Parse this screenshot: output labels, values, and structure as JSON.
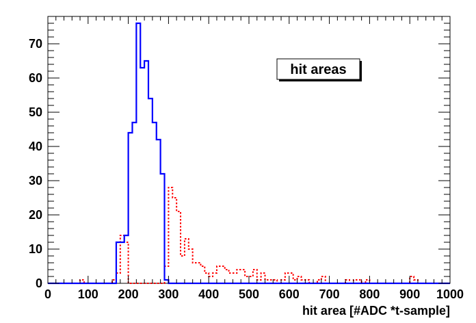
{
  "chart_data": {
    "type": "step",
    "title": "hit areas",
    "xlabel": "hit area [#ADC *t-sample]",
    "ylabel": "",
    "xlim": [
      0,
      1000
    ],
    "ylim": [
      0,
      78
    ],
    "bin_width": 10,
    "x_ticks": [
      0,
      100,
      200,
      300,
      400,
      500,
      600,
      700,
      800,
      900,
      1000
    ],
    "y_ticks": [
      0,
      10,
      20,
      30,
      40,
      50,
      60,
      70
    ],
    "series": [
      {
        "color": "#0000ff",
        "style": "solid",
        "x": [
          0,
          10,
          20,
          30,
          40,
          50,
          60,
          70,
          80,
          90,
          100,
          110,
          120,
          130,
          140,
          150,
          160,
          170,
          180,
          190,
          200,
          210,
          220,
          230,
          240,
          250,
          260,
          270,
          280,
          290,
          300,
          310,
          320,
          330,
          340,
          350,
          360,
          370,
          380,
          390,
          400,
          410,
          420,
          430,
          440,
          450,
          460,
          470,
          480,
          490,
          500,
          510,
          520,
          530,
          540,
          550,
          560,
          570,
          580,
          590,
          600,
          610,
          620,
          630,
          640,
          650,
          660,
          670,
          680,
          690,
          700,
          710,
          720,
          730,
          740,
          750,
          760,
          770,
          780,
          790,
          800,
          810,
          820,
          830,
          840,
          850,
          860,
          870,
          880,
          890,
          900,
          910,
          920,
          930,
          940,
          950,
          960,
          970,
          980,
          990
        ],
        "values": [
          0,
          0,
          0,
          0,
          0,
          0,
          0,
          0,
          0,
          0,
          0,
          0,
          0,
          0,
          0,
          0,
          0,
          12,
          12,
          14,
          44,
          47,
          76,
          63,
          65,
          54,
          47,
          42,
          32,
          1,
          0,
          0,
          0,
          0,
          0,
          0,
          0,
          0,
          0,
          0,
          0,
          0,
          0,
          0,
          0,
          0,
          0,
          0,
          0,
          0,
          0,
          0,
          0,
          0,
          0,
          0,
          0,
          0,
          0,
          0,
          0,
          0,
          0,
          0,
          0,
          0,
          0,
          0,
          0,
          0,
          0,
          0,
          0,
          0,
          0,
          0,
          0,
          0,
          0,
          0,
          0,
          0,
          0,
          0,
          0,
          0,
          0,
          0,
          0,
          0,
          0,
          0,
          0,
          0,
          0,
          0,
          0,
          0,
          0,
          0
        ]
      },
      {
        "color": "#ff0000",
        "style": "dotted",
        "x": [
          0,
          10,
          20,
          30,
          40,
          50,
          60,
          70,
          80,
          90,
          100,
          110,
          120,
          130,
          140,
          150,
          160,
          170,
          180,
          190,
          200,
          210,
          220,
          230,
          240,
          250,
          260,
          270,
          280,
          290,
          300,
          310,
          320,
          330,
          340,
          350,
          360,
          370,
          380,
          390,
          400,
          410,
          420,
          430,
          440,
          450,
          460,
          470,
          480,
          490,
          500,
          510,
          520,
          530,
          540,
          550,
          560,
          570,
          580,
          590,
          600,
          610,
          620,
          630,
          640,
          650,
          660,
          670,
          680,
          690,
          700,
          710,
          720,
          730,
          740,
          750,
          760,
          770,
          780,
          790,
          800,
          810,
          820,
          830,
          840,
          850,
          860,
          870,
          880,
          890,
          900,
          910,
          920,
          930,
          940,
          950,
          960,
          970,
          980,
          990
        ],
        "values": [
          0,
          0,
          0,
          0,
          0,
          0,
          0,
          0,
          1,
          0,
          0,
          0,
          0,
          0,
          0,
          0,
          1,
          3,
          14,
          12,
          0,
          0,
          0,
          0,
          0,
          0,
          0,
          0,
          0,
          5,
          28,
          25,
          21,
          8,
          13,
          10,
          6,
          6,
          5,
          3,
          2,
          3,
          5,
          5,
          4,
          3,
          3,
          4,
          4,
          2,
          2,
          4,
          1,
          3,
          1,
          1,
          1,
          0,
          1,
          3,
          3,
          1,
          2,
          1,
          1,
          0,
          0,
          1,
          2,
          0,
          0,
          0,
          0,
          0,
          1,
          0,
          1,
          1,
          0,
          1,
          0,
          0,
          0,
          0,
          0,
          0,
          0,
          0,
          0,
          0,
          2,
          1,
          0,
          0,
          0,
          0,
          0,
          0,
          0,
          0
        ]
      }
    ]
  }
}
